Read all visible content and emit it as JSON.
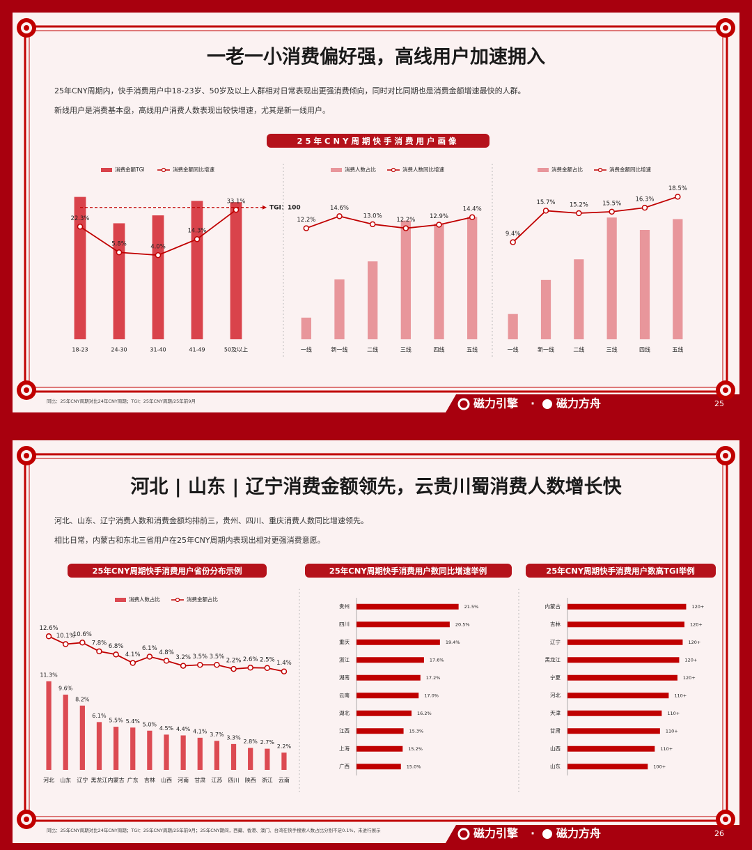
{
  "slides": [
    {
      "title": "一老一小消费偏好强，高线用户加速拥入",
      "paragraphs": [
        "25年CNY周期内，快手消费用户中18-23岁、50岁及以上人群相对日常表现出更强消费倾向，同时对比同期也是消费金额增速最快的人群。",
        "新线用户是消费基本盘，高线用户消费人数表现出较快增速，尤其是新一线用户。"
      ],
      "section_titles": [
        "25年CNY周期快手消费用户画像"
      ],
      "footnote": "同比：25年CNY周期对比24年CNY周期；TGI：25年CNY周期/25年前9月",
      "logos": [
        "磁力引擎",
        "磁力方舟"
      ],
      "separator": "·",
      "page_number": "25"
    },
    {
      "title": "河北 | 山东 | 辽宁消费金额领先，云贵川蜀消费人数增长快",
      "paragraphs": [
        "河北、山东、辽宁消费人数和消费金额均排前三，贵州、四川、重庆消费人数同比增速领先。",
        "相比日常，内蒙古和东北三省用户在25年CNY周期内表现出相对更强消费意愿。"
      ],
      "section_titles": [
        "25年CNY周期快手消费用户省份分布示例",
        "25年CNY周期快手消费用户数同比增速举例",
        "25年CNY周期快手消费用户数高TGI举例"
      ],
      "footnote": "同比：25年CNY周期对比24年CNY周期；TGI：25年CNY周期/25年前9月；25年CNY期间，西藏、香港、澳门、台湾在快手搜索人数占比分别不足0.1%，未进行展示",
      "logos": [
        "磁力引擎",
        "磁力方舟"
      ],
      "separator": "·",
      "page_number": "26"
    }
  ],
  "chart_data": [
    {
      "type": "bar_line",
      "categories": [
        "18-23",
        "24-30",
        "31-40",
        "41-49",
        "50及以上"
      ],
      "series": [
        {
          "name": "消费金额TGI",
          "color": "#d9434b",
          "values": [
            108,
            88,
            94,
            105,
            104
          ]
        },
        {
          "name": "消费金额同比增速",
          "color": "#c00000",
          "type": "line",
          "axis": "y2",
          "values": [
            22.3,
            5.8,
            4.0,
            14.3,
            33.1
          ],
          "value_labels": [
            "22.3%",
            "5.8%",
            "4.0%",
            "14.3%",
            "33.1%"
          ]
        }
      ],
      "ylim": [
        0,
        130
      ],
      "y2lim": [
        -50,
        60
      ],
      "reference_line": {
        "value": 100,
        "label": "TGI：100"
      }
    },
    {
      "type": "bar_line",
      "categories": [
        "一线",
        "新一线",
        "二线",
        "三线",
        "四线",
        "五线"
      ],
      "series": [
        {
          "name": "消费人数占比",
          "color": "#e8969b",
          "values": [
            4.2,
            11.6,
            15.1,
            23.0,
            22.4,
            23.7
          ]
        },
        {
          "name": "消费人数同比增速",
          "color": "#c00000",
          "type": "line",
          "axis": "y2",
          "values": [
            12.2,
            14.6,
            13.0,
            12.2,
            12.9,
            14.4
          ],
          "value_labels": [
            "12.2%",
            "14.6%",
            "13.0%",
            "12.2%",
            "12.9%",
            "14.4%"
          ]
        }
      ],
      "ylim": [
        0,
        32
      ],
      "y2lim": [
        -10,
        23
      ]
    },
    {
      "type": "bar_line",
      "categories": [
        "一线",
        "新一线",
        "二线",
        "三线",
        "四线",
        "五线"
      ],
      "series": [
        {
          "name": "消费金额占比",
          "color": "#e8969b",
          "values": [
            4.9,
            11.5,
            15.5,
            23.6,
            21.2,
            23.3
          ]
        },
        {
          "name": "消费金额同比增速",
          "color": "#c00000",
          "type": "line",
          "axis": "y2",
          "values": [
            9.4,
            15.7,
            15.2,
            15.5,
            16.3,
            18.5
          ],
          "value_labels": [
            "9.4%",
            "15.7%",
            "15.2%",
            "15.5%",
            "16.3%",
            "18.5%"
          ]
        }
      ],
      "ylim": [
        0,
        32
      ],
      "y2lim": [
        -10,
        23
      ]
    },
    {
      "type": "bar_line",
      "categories": [
        "河北",
        "山东",
        "辽宁",
        "黑龙江",
        "内蒙古",
        "广东",
        "吉林",
        "山西",
        "河南",
        "甘肃",
        "江苏",
        "四川",
        "陕西",
        "浙江",
        "云南"
      ],
      "series": [
        {
          "name": "消费人数占比",
          "color": "#dc4a52",
          "values": [
            11.3,
            9.6,
            8.2,
            6.1,
            5.5,
            5.4,
            5.0,
            4.5,
            4.4,
            4.1,
            3.7,
            3.3,
            2.8,
            2.7,
            2.2
          ],
          "value_labels": [
            "11.3%",
            "9.6%",
            "8.2%",
            "6.1%",
            "5.5%",
            "5.4%",
            "5.0%",
            "4.5%",
            "4.4%",
            "4.1%",
            "3.7%",
            "3.3%",
            "2.8%",
            "2.7%",
            "2.2%"
          ]
        },
        {
          "name": "消费金额占比",
          "color": "#c00000",
          "type": "line",
          "axis": "y2",
          "values": [
            12.6,
            10.1,
            10.6,
            7.8,
            6.8,
            4.1,
            6.1,
            4.8,
            3.2,
            3.5,
            3.5,
            2.2,
            2.6,
            2.5,
            1.4
          ],
          "value_labels": [
            "12.6%",
            "10.1%",
            "10.6%",
            "7.8%",
            "6.8%",
            "4.1%",
            "6.1%",
            "4.8%",
            "3.2%",
            "3.5%",
            "3.5%",
            "2.2%",
            "2.6%",
            "2.5%",
            "1.4%"
          ]
        }
      ],
      "ylim": [
        0,
        20
      ],
      "y2lim": [
        -30,
        20
      ]
    },
    {
      "type": "hbar",
      "categories": [
        "贵州",
        "四川",
        "重庆",
        "浙江",
        "湖南",
        "云南",
        "湖北",
        "江西",
        "上海",
        "广西"
      ],
      "values": [
        21.5,
        20.5,
        19.4,
        17.6,
        17.2,
        17.0,
        16.2,
        15.3,
        15.2,
        15.0
      ],
      "value_labels": [
        "21.5%",
        "20.5%",
        "19.4%",
        "17.6%",
        "17.2%",
        "17.0%",
        "16.2%",
        "15.3%",
        "15.2%",
        "15.0%"
      ],
      "color": "#c00000",
      "xlim": [
        10,
        26
      ]
    },
    {
      "type": "hbar",
      "categories": [
        "内蒙古",
        "吉林",
        "辽宁",
        "黑龙江",
        "宁夏",
        "河北",
        "天津",
        "甘肃",
        "山西",
        "山东"
      ],
      "values": [
        128,
        127,
        126,
        124,
        123,
        118,
        114,
        113,
        110,
        106
      ],
      "value_labels": [
        "120+",
        "120+",
        "120+",
        "120+",
        "120+",
        "110+",
        "110+",
        "110+",
        "110+",
        "100+"
      ],
      "color": "#c00000",
      "xlim": [
        60,
        135
      ]
    }
  ]
}
